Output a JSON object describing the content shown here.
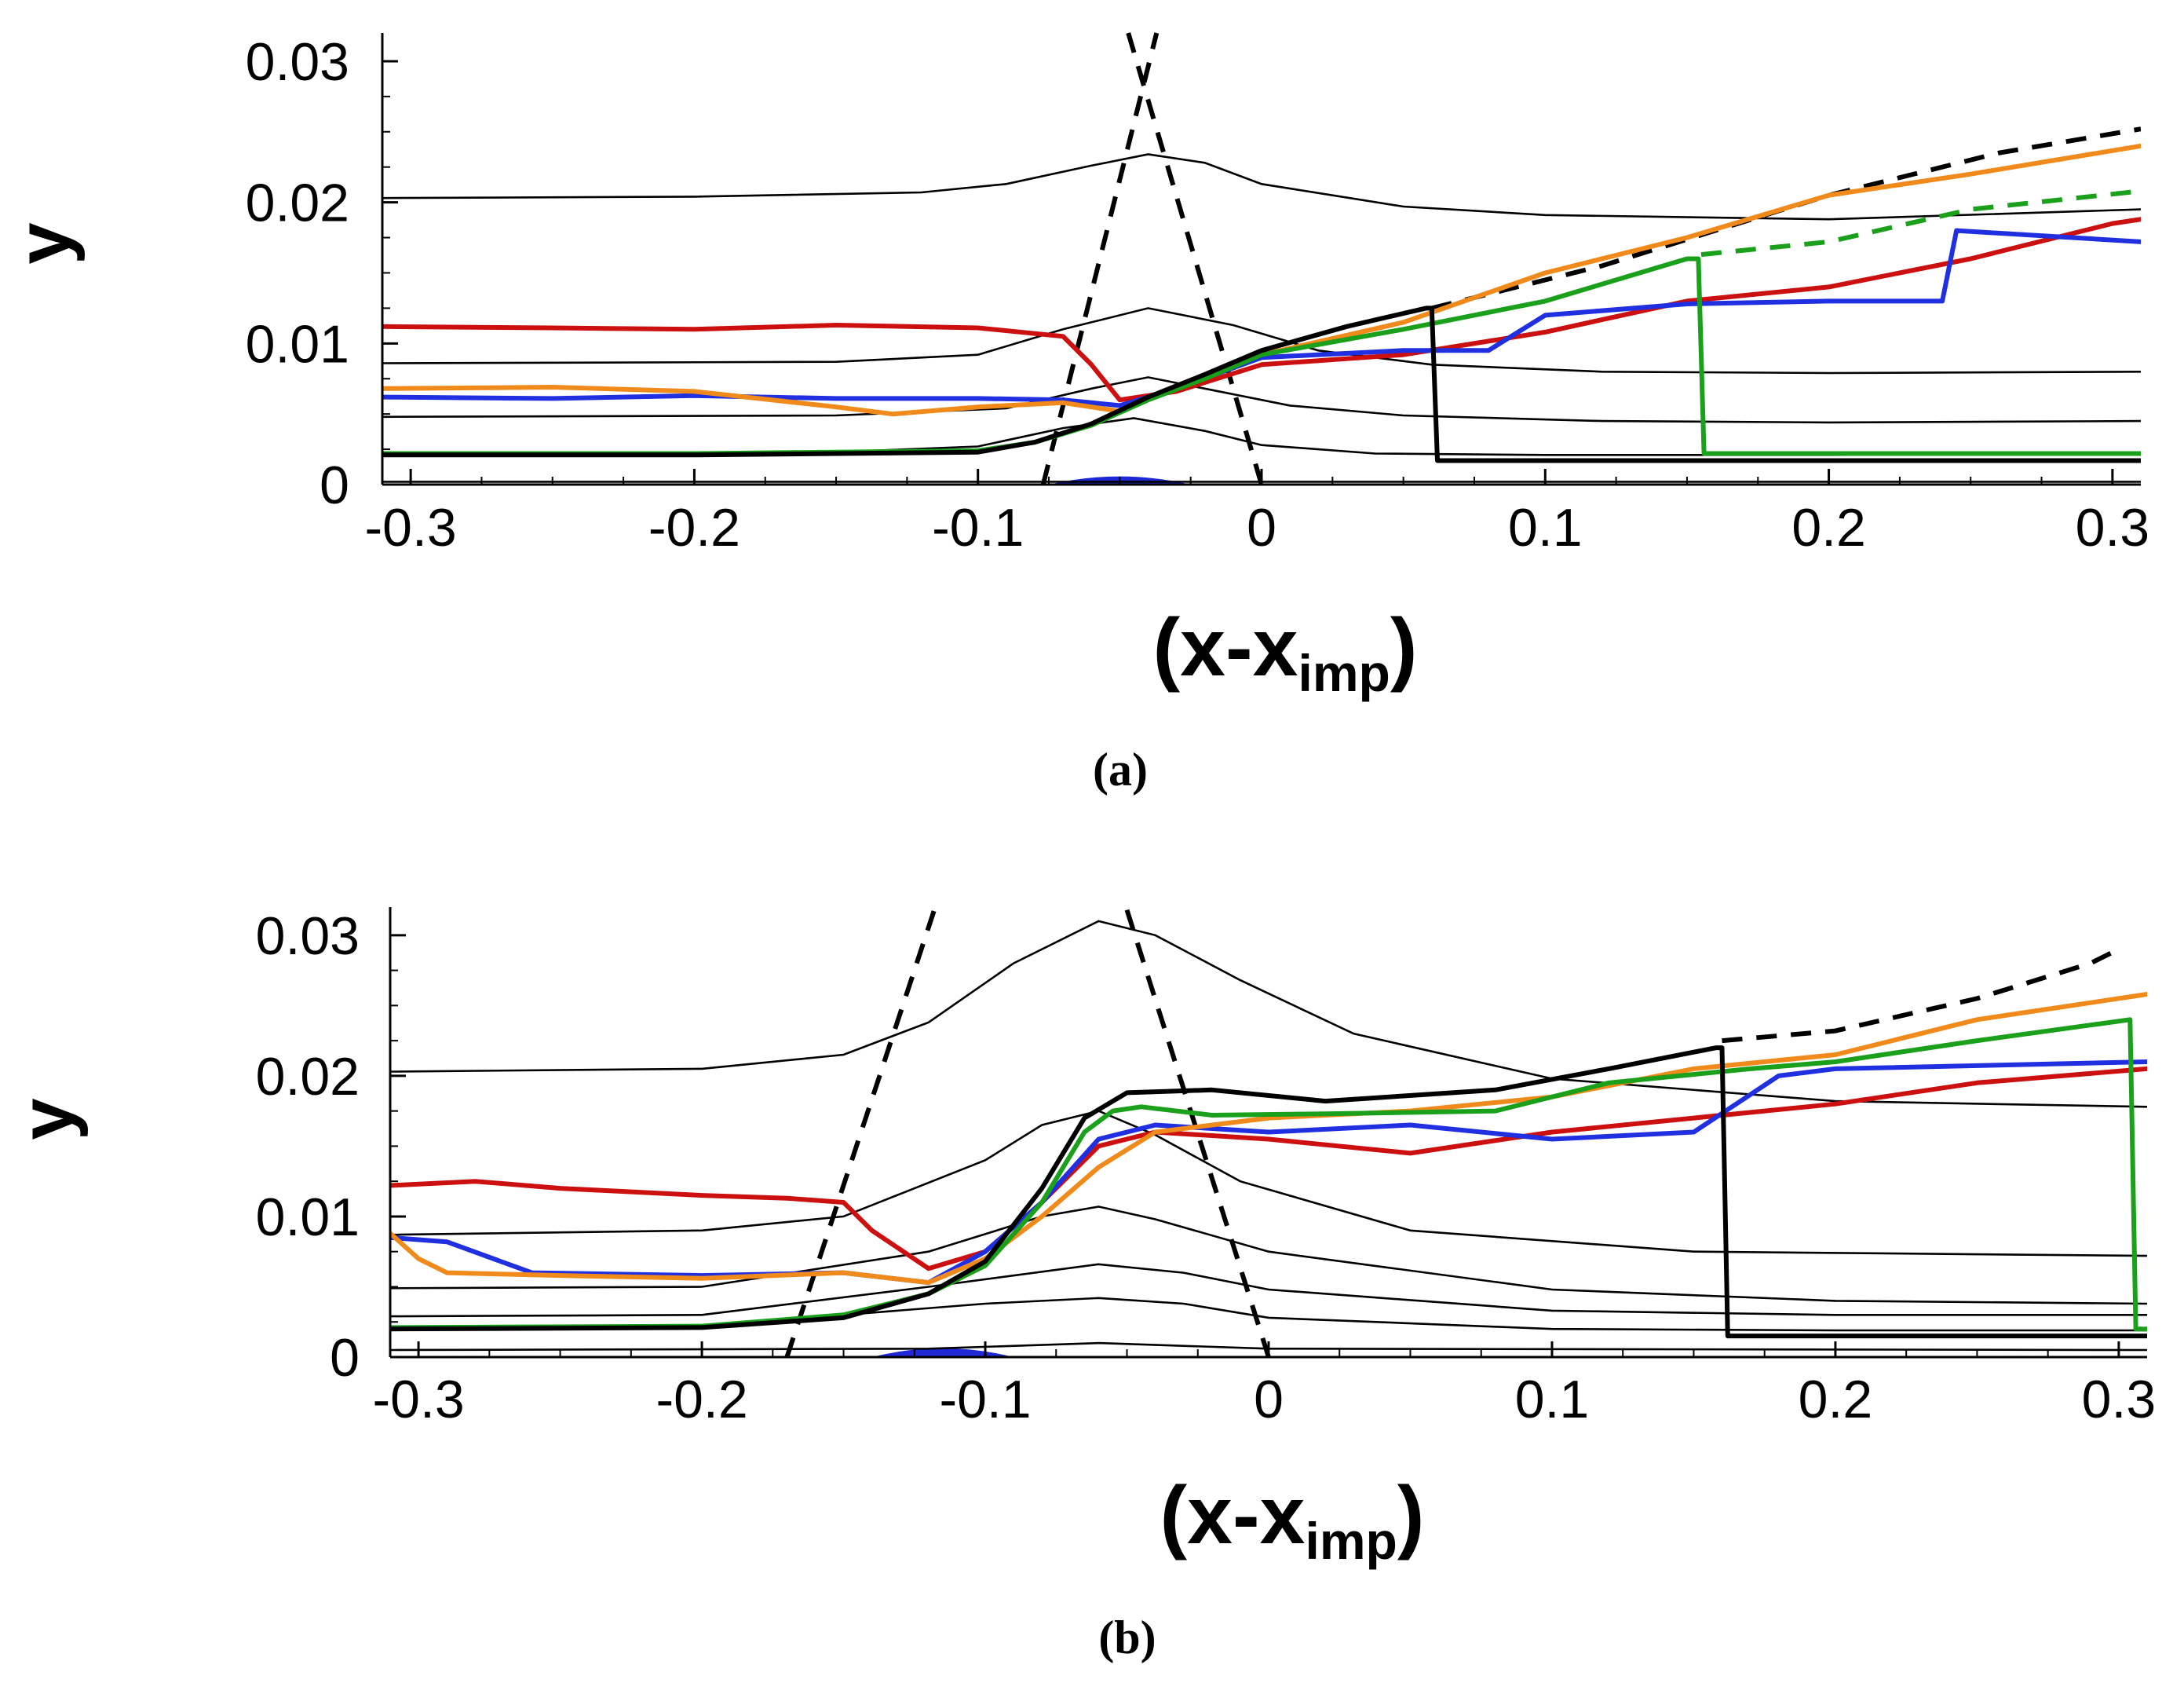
{
  "chart_data": [
    {
      "type": "line",
      "panel": "a",
      "caption": "(a)",
      "xlabel": "(x-x",
      "xlabel_sub": "imp",
      "xlabel_close": ")",
      "ylabel": "y",
      "xlim": [
        -0.31,
        0.31
      ],
      "ylim": [
        0,
        0.032
      ],
      "xticks": [
        -0.3,
        -0.2,
        -0.1,
        0,
        0.1,
        0.2,
        0.3
      ],
      "xtick_labels": [
        "-0.3",
        "-0.2",
        "-0.1",
        "0",
        "0.1",
        "0.2",
        "0.3"
      ],
      "yticks": [
        0,
        0.01,
        0.02,
        0.03
      ],
      "ytick_labels": [
        "0",
        "0.01",
        "0.02",
        "0.03"
      ],
      "bubble": {
        "x": [
          -0.075,
          -0.05,
          -0.025
        ],
        "peak": 0.0006,
        "color": "#1f28d6"
      },
      "contours": [
        {
          "name": "contour-1",
          "x": [
            -0.31,
            -0.2,
            -0.12,
            -0.09,
            -0.06,
            -0.04,
            -0.02,
            0.0,
            0.05,
            0.1,
            0.2,
            0.31
          ],
          "y": [
            0.0203,
            0.0204,
            0.0207,
            0.0213,
            0.0226,
            0.0234,
            0.0228,
            0.0213,
            0.0197,
            0.0191,
            0.0188,
            0.0195
          ]
        },
        {
          "name": "contour-2",
          "x": [
            -0.31,
            -0.15,
            -0.1,
            -0.07,
            -0.04,
            -0.01,
            0.02,
            0.06,
            0.12,
            0.2,
            0.31
          ],
          "y": [
            0.0086,
            0.0087,
            0.0092,
            0.011,
            0.0125,
            0.0113,
            0.0095,
            0.0085,
            0.008,
            0.0079,
            0.008
          ]
        },
        {
          "name": "contour-3",
          "x": [
            -0.31,
            -0.15,
            -0.09,
            -0.06,
            -0.04,
            -0.02,
            0.01,
            0.05,
            0.12,
            0.2,
            0.31
          ],
          "y": [
            0.0048,
            0.0049,
            0.0054,
            0.0068,
            0.0076,
            0.0068,
            0.0056,
            0.0049,
            0.0045,
            0.0044,
            0.0045
          ]
        },
        {
          "name": "contour-4",
          "x": [
            -0.31,
            -0.15,
            -0.1,
            -0.07,
            -0.045,
            -0.02,
            0.0,
            0.04,
            0.1,
            0.2,
            0.31
          ],
          "y": [
            0.0022,
            0.0023,
            0.0027,
            0.004,
            0.0047,
            0.0038,
            0.0028,
            0.0022,
            0.0021,
            0.0021,
            0.0022
          ]
        },
        {
          "name": "contour-5",
          "x": [
            -0.31,
            -0.2,
            -0.1,
            0.0,
            0.1,
            0.2,
            0.31
          ],
          "y": [
            0.0002,
            0.0002,
            0.0002,
            0.0002,
            0.0002,
            0.0002,
            0.0002
          ]
        }
      ],
      "dashed": [
        {
          "name": "shock-line-left",
          "color": "#000000",
          "x": [
            -0.077,
            -0.037
          ],
          "y": [
            0.0,
            0.032
          ]
        },
        {
          "name": "shock-line-right",
          "color": "#000000",
          "x": [
            -0.047,
            0.0
          ],
          "y": [
            0.032,
            0.0
          ]
        },
        {
          "name": "dashed-black-outer",
          "color": "#000000",
          "x": [
            0.06,
            0.12,
            0.2,
            0.26,
            0.31
          ],
          "y": [
            0.0125,
            0.0155,
            0.0205,
            0.0235,
            0.0252
          ]
        },
        {
          "name": "dashed-green-outer",
          "color": "#1aa01a",
          "x": [
            0.155,
            0.2,
            0.25,
            0.31
          ],
          "y": [
            0.0163,
            0.0172,
            0.0195,
            0.0208
          ]
        }
      ],
      "series": [
        {
          "name": "red",
          "color": "#cc1010",
          "x": [
            -0.31,
            -0.25,
            -0.2,
            -0.15,
            -0.1,
            -0.07,
            -0.06,
            -0.05,
            -0.03,
            0.0,
            0.05,
            0.1,
            0.15,
            0.2,
            0.25,
            0.3,
            0.31
          ],
          "y": [
            0.0112,
            0.0111,
            0.011,
            0.0113,
            0.0111,
            0.0105,
            0.0085,
            0.006,
            0.0066,
            0.0085,
            0.0092,
            0.0108,
            0.013,
            0.014,
            0.016,
            0.0185,
            0.0188
          ]
        },
        {
          "name": "blue",
          "color": "#2030e0",
          "x": [
            -0.31,
            -0.25,
            -0.2,
            -0.15,
            -0.1,
            -0.07,
            -0.05,
            -0.03,
            0.0,
            0.05,
            0.08,
            0.1,
            0.15,
            0.2,
            0.24,
            0.245,
            0.31
          ],
          "y": [
            0.0062,
            0.0061,
            0.0063,
            0.0061,
            0.0061,
            0.006,
            0.0056,
            0.0068,
            0.009,
            0.0095,
            0.0095,
            0.012,
            0.0128,
            0.013,
            0.013,
            0.018,
            0.0172
          ]
        },
        {
          "name": "orange",
          "color": "#f08a1a",
          "x": [
            -0.31,
            -0.25,
            -0.2,
            -0.15,
            -0.13,
            -0.1,
            -0.07,
            -0.05,
            -0.03,
            0.0,
            0.05,
            0.1,
            0.15,
            0.2,
            0.25,
            0.31
          ],
          "y": [
            0.0068,
            0.0069,
            0.0066,
            0.0055,
            0.005,
            0.0055,
            0.0058,
            0.0052,
            0.007,
            0.0092,
            0.0115,
            0.015,
            0.0175,
            0.0205,
            0.022,
            0.024
          ]
        },
        {
          "name": "green",
          "color": "#1aa01a",
          "x": [
            -0.31,
            -0.2,
            -0.1,
            -0.08,
            -0.06,
            -0.04,
            -0.02,
            0.0,
            0.05,
            0.1,
            0.15,
            0.154,
            0.156,
            0.2,
            0.31
          ],
          "y": [
            0.0022,
            0.0022,
            0.0024,
            0.003,
            0.0042,
            0.006,
            0.0075,
            0.0092,
            0.011,
            0.013,
            0.016,
            0.016,
            0.0022,
            0.0022,
            0.0022
          ]
        },
        {
          "name": "black",
          "color": "#000000",
          "x": [
            -0.31,
            -0.2,
            -0.1,
            -0.08,
            -0.06,
            -0.04,
            -0.02,
            0.0,
            0.03,
            0.058,
            0.06,
            0.062,
            0.31
          ],
          "y": [
            0.0021,
            0.0021,
            0.0023,
            0.003,
            0.0043,
            0.0062,
            0.0078,
            0.0095,
            0.0112,
            0.0125,
            0.0125,
            0.0017,
            0.0017
          ]
        }
      ]
    },
    {
      "type": "line",
      "panel": "b",
      "caption": "(b)",
      "xlabel": "(x-x",
      "xlabel_sub": "imp",
      "xlabel_close": ")",
      "ylabel": "y",
      "xlim": [
        -0.31,
        0.31
      ],
      "ylim": [
        0,
        0.032
      ],
      "xticks": [
        -0.3,
        -0.2,
        -0.1,
        0,
        0.1,
        0.2,
        0.3
      ],
      "xtick_labels": [
        "-0.3",
        "-0.2",
        "-0.1",
        "0",
        "0.1",
        "0.2",
        "0.3"
      ],
      "yticks": [
        0,
        0.01,
        0.02,
        0.03
      ],
      "ytick_labels": [
        "0",
        "0.01",
        "0.02",
        "0.03"
      ],
      "bubble": {
        "x": [
          -0.14,
          -0.115,
          -0.09
        ],
        "peak": 0.0007,
        "color": "#1f28d6"
      },
      "contours": [
        {
          "name": "contour-1",
          "x": [
            -0.31,
            -0.2,
            -0.15,
            -0.12,
            -0.09,
            -0.06,
            -0.04,
            -0.01,
            0.03,
            0.1,
            0.2,
            0.31
          ],
          "y": [
            0.0203,
            0.0205,
            0.0215,
            0.0238,
            0.028,
            0.031,
            0.03,
            0.0268,
            0.023,
            0.0198,
            0.0182,
            0.0178
          ]
        },
        {
          "name": "contour-2",
          "x": [
            -0.31,
            -0.2,
            -0.15,
            -0.1,
            -0.08,
            -0.06,
            -0.04,
            -0.01,
            0.05,
            0.15,
            0.31
          ],
          "y": [
            0.0087,
            0.009,
            0.01,
            0.014,
            0.0165,
            0.0175,
            0.0158,
            0.0125,
            0.009,
            0.0075,
            0.0072
          ]
        },
        {
          "name": "contour-3",
          "x": [
            -0.31,
            -0.2,
            -0.12,
            -0.08,
            -0.06,
            -0.04,
            0.0,
            0.1,
            0.2,
            0.31
          ],
          "y": [
            0.0049,
            0.005,
            0.0075,
            0.01,
            0.0107,
            0.0098,
            0.0075,
            0.0048,
            0.004,
            0.0038
          ]
        },
        {
          "name": "contour-4",
          "x": [
            -0.31,
            -0.2,
            -0.12,
            -0.06,
            -0.03,
            0.0,
            0.1,
            0.2,
            0.31
          ],
          "y": [
            0.0029,
            0.003,
            0.005,
            0.0066,
            0.006,
            0.0048,
            0.0033,
            0.003,
            0.003
          ]
        },
        {
          "name": "contour-5",
          "x": [
            -0.31,
            -0.2,
            -0.15,
            -0.1,
            -0.06,
            -0.03,
            0.0,
            0.1,
            0.2,
            0.31
          ],
          "y": [
            0.0021,
            0.0022,
            0.003,
            0.0038,
            0.0042,
            0.0038,
            0.0028,
            0.002,
            0.0019,
            0.0019
          ]
        },
        {
          "name": "contour-6",
          "x": [
            -0.31,
            -0.12,
            -0.06,
            0.0,
            0.31
          ],
          "y": [
            0.0005,
            0.0006,
            0.001,
            0.0006,
            0.0005
          ]
        }
      ],
      "dashed": [
        {
          "name": "shock-line-left",
          "color": "#000000",
          "x": [
            -0.17,
            -0.118
          ],
          "y": [
            0.0,
            0.0318
          ]
        },
        {
          "name": "shock-line-right",
          "color": "#000000",
          "x": [
            -0.05,
            0.0
          ],
          "y": [
            0.0318,
            0.0
          ]
        },
        {
          "name": "dashed-black-outer",
          "color": "#000000",
          "x": [
            0.16,
            0.2,
            0.25,
            0.29,
            0.3
          ],
          "y": [
            0.0225,
            0.0232,
            0.0255,
            0.028,
            0.029
          ]
        }
      ],
      "series": [
        {
          "name": "red",
          "color": "#cc1010",
          "x": [
            -0.31,
            -0.28,
            -0.25,
            -0.2,
            -0.17,
            -0.15,
            -0.14,
            -0.12,
            -0.1,
            -0.08,
            -0.06,
            -0.04,
            0.0,
            0.05,
            0.1,
            0.15,
            0.2,
            0.25,
            0.31
          ],
          "y": [
            0.0122,
            0.0125,
            0.012,
            0.0115,
            0.0113,
            0.011,
            0.009,
            0.0063,
            0.0075,
            0.011,
            0.015,
            0.016,
            0.0155,
            0.0145,
            0.016,
            0.017,
            0.018,
            0.0195,
            0.0205
          ]
        },
        {
          "name": "blue",
          "color": "#2030e0",
          "x": [
            -0.31,
            -0.29,
            -0.26,
            -0.2,
            -0.15,
            -0.12,
            -0.1,
            -0.08,
            -0.06,
            -0.04,
            0.0,
            0.05,
            0.1,
            0.15,
            0.18,
            0.2,
            0.31
          ],
          "y": [
            0.0085,
            0.0082,
            0.006,
            0.0058,
            0.006,
            0.0053,
            0.0075,
            0.011,
            0.0155,
            0.0165,
            0.016,
            0.0165,
            0.0155,
            0.016,
            0.02,
            0.0205,
            0.021
          ]
        },
        {
          "name": "orange",
          "color": "#f08a1a",
          "x": [
            -0.31,
            -0.3,
            -0.29,
            -0.25,
            -0.2,
            -0.15,
            -0.12,
            -0.1,
            -0.08,
            -0.06,
            -0.04,
            0.0,
            0.05,
            0.1,
            0.15,
            0.2,
            0.25,
            0.31
          ],
          "y": [
            0.0088,
            0.007,
            0.006,
            0.0058,
            0.0056,
            0.006,
            0.0053,
            0.007,
            0.01,
            0.0135,
            0.016,
            0.017,
            0.0175,
            0.0185,
            0.0205,
            0.0215,
            0.024,
            0.0258
          ]
        },
        {
          "name": "green",
          "color": "#1aa01a",
          "x": [
            -0.31,
            -0.2,
            -0.15,
            -0.12,
            -0.1,
            -0.08,
            -0.065,
            -0.055,
            -0.045,
            -0.02,
            0.02,
            0.08,
            0.12,
            0.17,
            0.2,
            0.25,
            0.304,
            0.306,
            0.31
          ],
          "y": [
            0.0021,
            0.0022,
            0.003,
            0.0045,
            0.0065,
            0.011,
            0.016,
            0.0175,
            0.0178,
            0.0172,
            0.0173,
            0.0175,
            0.0195,
            0.0205,
            0.021,
            0.0225,
            0.024,
            0.002,
            0.002
          ]
        },
        {
          "name": "black",
          "color": "#000000",
          "x": [
            -0.31,
            -0.2,
            -0.15,
            -0.12,
            -0.1,
            -0.08,
            -0.065,
            -0.05,
            -0.02,
            0.02,
            0.08,
            0.12,
            0.158,
            0.16,
            0.162,
            0.31
          ],
          "y": [
            0.002,
            0.0021,
            0.0028,
            0.0045,
            0.0068,
            0.012,
            0.017,
            0.0188,
            0.019,
            0.0182,
            0.019,
            0.0205,
            0.022,
            0.022,
            0.0015,
            0.0015
          ]
        }
      ]
    }
  ]
}
